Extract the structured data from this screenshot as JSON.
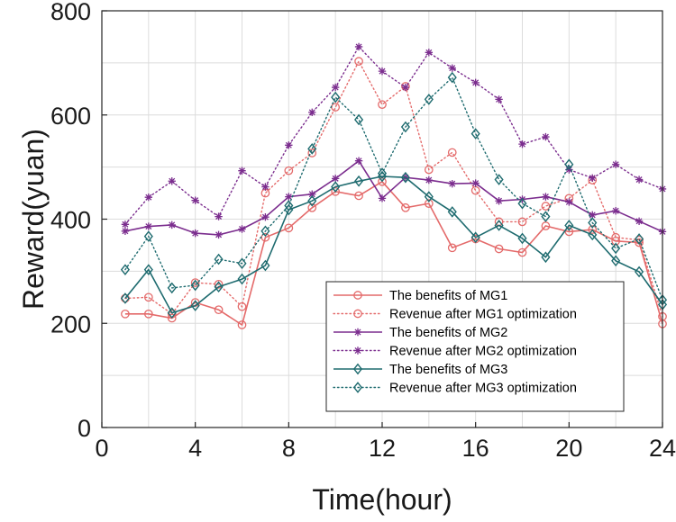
{
  "chart_data": {
    "type": "line",
    "title": "",
    "xlabel": "Time(hour)",
    "ylabel": "Reward(yuan)",
    "xlim": [
      0,
      24
    ],
    "ylim": [
      0,
      800
    ],
    "xticks": [
      "0",
      "4",
      "8",
      "12",
      "16",
      "20",
      "24"
    ],
    "yticks": [
      "0",
      "200",
      "400",
      "600",
      "800"
    ],
    "grid": true,
    "legend_position": "bottom-right",
    "x": [
      1,
      2,
      3,
      4,
      5,
      6,
      7,
      8,
      9,
      10,
      11,
      12,
      13,
      14,
      15,
      16,
      17,
      18,
      19,
      20,
      21,
      22,
      23,
      24
    ],
    "series": [
      {
        "name": "The benefits of MG1",
        "color": "#e46a6a",
        "line": "solid",
        "marker": "circle",
        "values": [
          218,
          218,
          210,
          240,
          226,
          197,
          365,
          383,
          422,
          453,
          445,
          472,
          422,
          430,
          345,
          362,
          343,
          336,
          387,
          376,
          380,
          358,
          355,
          199
        ]
      },
      {
        "name": "Revenue after MG1 optimization",
        "color": "#e46a6a",
        "line": "dotted",
        "marker": "circle",
        "values": [
          248,
          250,
          218,
          278,
          275,
          232,
          450,
          493,
          527,
          615,
          703,
          620,
          655,
          495,
          528,
          455,
          395,
          395,
          425,
          440,
          475,
          365,
          360,
          213
        ]
      },
      {
        "name": "The benefits of MG2",
        "color": "#7b2d8e",
        "line": "solid",
        "marker": "asterisk",
        "values": [
          377,
          386,
          389,
          373,
          370,
          381,
          404,
          443,
          448,
          478,
          512,
          440,
          480,
          475,
          468,
          469,
          435,
          438,
          443,
          433,
          408,
          416,
          396,
          376
        ]
      },
      {
        "name": "Revenue after MG2 optimization",
        "color": "#7b2d8e",
        "line": "dotted",
        "marker": "asterisk",
        "values": [
          390,
          442,
          473,
          436,
          405,
          493,
          462,
          542,
          605,
          653,
          731,
          684,
          653,
          720,
          690,
          662,
          630,
          544,
          558,
          495,
          479,
          505,
          476,
          458
        ]
      },
      {
        "name": "The benefits of MG3",
        "color": "#1e6b6f",
        "line": "solid",
        "marker": "diamond",
        "values": [
          248,
          303,
          220,
          234,
          270,
          285,
          311,
          418,
          435,
          462,
          473,
          482,
          480,
          443,
          414,
          365,
          388,
          363,
          327,
          388,
          370,
          320,
          299,
          236
        ]
      },
      {
        "name": "Revenue after MG3 optimization",
        "color": "#1e6b6f",
        "line": "dotted",
        "marker": "diamond",
        "values": [
          303,
          367,
          268,
          273,
          323,
          315,
          377,
          426,
          535,
          634,
          591,
          488,
          577,
          630,
          672,
          564,
          476,
          430,
          405,
          505,
          393,
          344,
          362,
          245
        ]
      }
    ]
  }
}
